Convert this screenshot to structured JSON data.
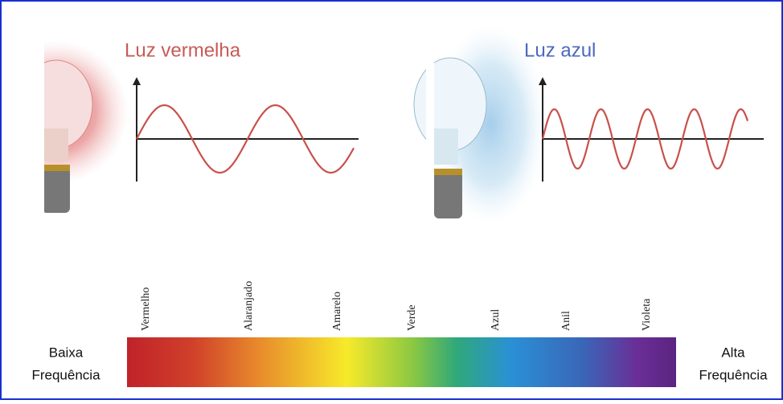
{
  "red_light": {
    "title": "Luz vermelha"
  },
  "blue_light": {
    "title": "Luz azul"
  },
  "spectrum": {
    "colors": [
      "Vermelho",
      "Alaranjado",
      "Amarelo",
      "Verde",
      "Azul",
      "Anil",
      "Violeta"
    ],
    "low": {
      "line1": "Baixa",
      "line2": "Frequência"
    },
    "high": {
      "line1": "Alta",
      "line2": "Frequência"
    }
  }
}
